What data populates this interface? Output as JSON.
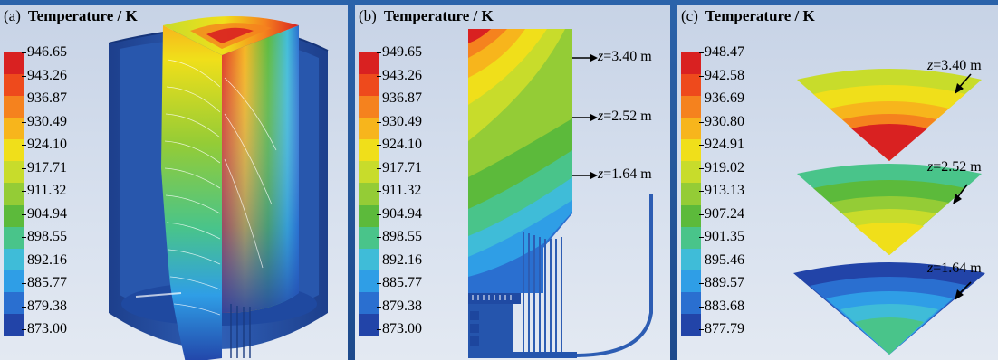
{
  "panels": [
    {
      "letter": "(a)",
      "title": "Temperature / K",
      "ticks": [
        "946.65",
        "943.26",
        "936.87",
        "930.49",
        "924.10",
        "917.71",
        "911.32",
        "904.94",
        "898.55",
        "892.16",
        "885.77",
        "879.38",
        "873.00"
      ]
    },
    {
      "letter": "(b)",
      "title": "Temperature / K",
      "ticks": [
        "949.65",
        "943.26",
        "936.87",
        "930.49",
        "924.10",
        "917.71",
        "911.32",
        "904.94",
        "898.55",
        "892.16",
        "885.77",
        "879.38",
        "873.00"
      ],
      "labels": [
        {
          "var": "z",
          "text": "=3.40 m"
        },
        {
          "var": "z",
          "text": "=2.52 m"
        },
        {
          "var": "z",
          "text": "=1.64 m"
        }
      ]
    },
    {
      "letter": "(c)",
      "title": "Temperature / K",
      "ticks": [
        "948.47",
        "942.58",
        "936.69",
        "930.80",
        "924.91",
        "919.02",
        "913.13",
        "907.24",
        "901.35",
        "895.46",
        "889.57",
        "883.68",
        "877.79"
      ],
      "labels": [
        {
          "var": "z",
          "text": "=3.40 m"
        },
        {
          "var": "z",
          "text": "=2.52 m"
        },
        {
          "var": "z",
          "text": "=1.64 m"
        }
      ]
    }
  ],
  "colors": {
    "scale": [
      "#d92121",
      "#ee4a1c",
      "#f5821e",
      "#f7b51c",
      "#f0df1a",
      "#c8dc2b",
      "#94cc36",
      "#5cba3b",
      "#49c48a",
      "#3fbcd8",
      "#2f9ee6",
      "#2a6fd0",
      "#2244a8"
    ],
    "body_blue": "#2753a6"
  }
}
